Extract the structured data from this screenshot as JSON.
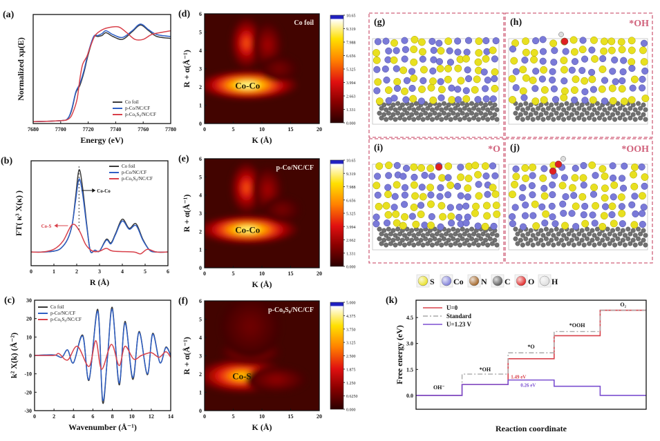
{
  "chart_data": [
    {
      "panel_label": "(a)",
      "type": "line",
      "xlabel": "Energy (eV)",
      "ylabel": "Normalized xμ(E)",
      "xlim": [
        7680,
        7780
      ],
      "ylim": [
        -0.02,
        1.12
      ],
      "xticks": [
        "7680",
        "7700",
        "7720",
        "7740",
        "7760",
        "7780"
      ],
      "yticks": [],
      "legend": "bottom-right",
      "grid": false,
      "series": [
        {
          "name": "Co foil",
          "color": "#3a3a3a",
          "x": [
            7680,
            7700,
            7705,
            7708,
            7711,
            7714,
            7717,
            7720,
            7724,
            7727,
            7730,
            7733,
            7738,
            7745,
            7752,
            7758,
            7764,
            7770,
            7780
          ],
          "y": [
            0,
            0.01,
            0.03,
            0.12,
            0.3,
            0.38,
            0.52,
            0.7,
            0.88,
            0.89,
            0.9,
            0.93,
            0.89,
            0.86,
            0.94,
            1.01,
            0.95,
            0.89,
            0.87
          ]
        },
        {
          "name": "p-Co/NC/CF",
          "color": "#2f5fc4",
          "x": [
            7680,
            7700,
            7705,
            7708,
            7711,
            7714,
            7717,
            7720,
            7724,
            7727,
            7730,
            7733,
            7738,
            7745,
            7752,
            7758,
            7764,
            7770,
            7780
          ],
          "y": [
            0,
            0.01,
            0.03,
            0.13,
            0.31,
            0.4,
            0.54,
            0.72,
            0.89,
            0.9,
            0.92,
            0.95,
            0.91,
            0.88,
            0.95,
            1.02,
            0.96,
            0.91,
            0.89
          ]
        },
        {
          "name": "p-Co₉S₈/NC/CF",
          "color": "#d8404a",
          "x": [
            7680,
            7700,
            7706,
            7709,
            7712,
            7714,
            7716,
            7719,
            7722,
            7725,
            7729,
            7734,
            7742,
            7748,
            7754,
            7760,
            7766,
            7772,
            7780
          ],
          "y": [
            0,
            0.01,
            0.03,
            0.1,
            0.24,
            0.45,
            0.6,
            0.68,
            0.8,
            0.9,
            0.95,
            0.98,
            0.99,
            0.93,
            0.86,
            0.86,
            0.91,
            0.93,
            0.95
          ]
        }
      ]
    },
    {
      "panel_label": "(b)",
      "type": "line",
      "xlabel": "R (Å)",
      "ylabel": "FT( κ³ X(κ) )",
      "xlim": [
        0,
        6
      ],
      "ylim": [
        -0.15,
        1.0
      ],
      "xticks": [
        "0",
        "1",
        "2",
        "3",
        "4",
        "5",
        "6"
      ],
      "yticks": [],
      "legend": "top-right",
      "grid": false,
      "annotations": [
        {
          "text": "Co-Co",
          "x": 2.1,
          "color": "#111"
        },
        {
          "text": "Co-S",
          "x": 1.8,
          "color": "#d8404a"
        }
      ],
      "series": [
        {
          "name": "Co foil",
          "color": "#3a3a3a",
          "x": [
            0,
            0.5,
            1,
            1.3,
            1.6,
            1.8,
            1.95,
            2.1,
            2.25,
            2.45,
            2.6,
            2.8,
            3.0,
            3.3,
            3.5,
            3.7,
            4.0,
            4.3,
            4.6,
            4.9,
            5.2,
            5.5,
            6
          ],
          "y": [
            0,
            0,
            0.01,
            0.04,
            0.14,
            0.3,
            0.6,
            0.9,
            0.72,
            0.28,
            0.01,
            0.02,
            0.01,
            0.14,
            0.1,
            0.2,
            0.36,
            0.26,
            0.31,
            0.14,
            0.02,
            0,
            0
          ]
        },
        {
          "name": "p-Co/NC/CF",
          "color": "#2f5fc4",
          "x": [
            0,
            0.5,
            1,
            1.3,
            1.6,
            1.8,
            1.95,
            2.1,
            2.25,
            2.45,
            2.6,
            2.8,
            3.0,
            3.3,
            3.5,
            3.7,
            4.0,
            4.3,
            4.6,
            4.9,
            5.2,
            5.5,
            6
          ],
          "y": [
            0,
            0,
            0.01,
            0.04,
            0.14,
            0.3,
            0.56,
            0.8,
            0.65,
            0.26,
            0.01,
            0.02,
            0.01,
            0.13,
            0.09,
            0.19,
            0.34,
            0.25,
            0.29,
            0.13,
            0.02,
            0,
            0
          ]
        },
        {
          "name": "p-Co₉S₈/NC/CF",
          "color": "#d8404a",
          "x": [
            0,
            0.5,
            1,
            1.4,
            1.8,
            2.1,
            2.4,
            2.7,
            3.0,
            3.3,
            3.6,
            4.5,
            4.8,
            5.1,
            5.5,
            6
          ],
          "y": [
            0,
            0,
            0.03,
            0.12,
            0.3,
            0.24,
            0.08,
            0.01,
            0.01,
            0.04,
            0.01,
            0,
            -0.02,
            0.03,
            0,
            0
          ]
        }
      ]
    },
    {
      "panel_label": "(c)",
      "type": "line",
      "xlabel": "Wavenumber (Å⁻¹)",
      "ylabel": "k² X(k) (Å⁻²)",
      "xlim": [
        0,
        14
      ],
      "ylim": [
        -30,
        30
      ],
      "xticks": [
        "0",
        "2",
        "4",
        "6",
        "8",
        "10",
        "12",
        "14"
      ],
      "yticks": [
        "-30",
        "-20",
        "-10",
        "0",
        "10",
        "20",
        "30"
      ],
      "legend": "top-left",
      "grid": false,
      "series": [
        {
          "name": "Co foil",
          "color": "#3a3a3a",
          "x": [
            0,
            2,
            2.8,
            3.4,
            4,
            4.95,
            5.6,
            6.5,
            7.0,
            7.5,
            8.0,
            8.7,
            9.3,
            10.1,
            10.75,
            11.6,
            12.15,
            12.9,
            13.5,
            14
          ],
          "y": [
            0,
            0.3,
            -1,
            3,
            -4,
            11,
            -13.5,
            25,
            -25.5,
            -1,
            26,
            -16,
            18.5,
            -13,
            13,
            -10.5,
            12,
            -4,
            4.5,
            0
          ]
        },
        {
          "name": "p-Co/NC/CF",
          "color": "#2f5fc4",
          "x": [
            0,
            2,
            2.8,
            3.4,
            4,
            4.95,
            5.6,
            6.5,
            7.0,
            7.5,
            8.0,
            8.7,
            9.3,
            10.1,
            10.75,
            11.6,
            12.15,
            12.9,
            13.5,
            14
          ],
          "y": [
            0,
            0.3,
            -1,
            3,
            -4,
            10.5,
            -13,
            24,
            -24,
            -1,
            25,
            -15,
            17.5,
            -12,
            12.5,
            -10,
            11.5,
            -4,
            4.2,
            0
          ]
        },
        {
          "name": "p-Co₉S₈/NC/CF",
          "color": "#d8404a",
          "x": [
            0,
            2,
            2.5,
            3.4,
            4.4,
            5.6,
            6.3,
            6.9,
            7.9,
            8.7,
            9.3,
            10.2,
            11,
            12,
            12.8,
            13.5,
            14
          ],
          "y": [
            0,
            0,
            1,
            -2.5,
            5,
            -6,
            8,
            -7.5,
            6,
            -5.5,
            5,
            -2,
            0,
            1.5,
            -1,
            2,
            -1
          ]
        }
      ]
    },
    {
      "panel_label": "(d)",
      "type": "heatmap",
      "title": "Co foil",
      "peak_label": "Co-Co",
      "xlabel": "K (Å)",
      "ylabel": "R + α(Å⁻¹)",
      "xlim": [
        0,
        20
      ],
      "ylim": [
        0,
        6
      ],
      "xticks": [
        "0",
        "5",
        "10",
        "15",
        "20"
      ],
      "yticks": [
        "0",
        "1",
        "2",
        "3",
        "4",
        "5",
        "6"
      ],
      "colorbar": [
        "10.65",
        "9.319",
        "7.988",
        "6.656",
        "5.325",
        "3.994",
        "2.663",
        "1.331",
        "0.000"
      ],
      "peaks": [
        {
          "k": 7.5,
          "R": 2.1,
          "sk": 6.5,
          "sR": 0.55,
          "level": 0.97
        },
        {
          "k": 7.3,
          "R": 4.4,
          "sk": 2.1,
          "sR": 1.0,
          "level": 0.55
        },
        {
          "k": 11,
          "R": 4.3,
          "sk": 2.0,
          "sR": 0.9,
          "level": 0.3
        },
        {
          "k": 13,
          "R": 3.0,
          "sk": 2.5,
          "sR": 0.5,
          "level": 0.18
        }
      ]
    },
    {
      "panel_label": "(e)",
      "type": "heatmap",
      "title": "p-Co/NC/CF",
      "peak_label": "Co-Co",
      "xlabel": "K (Å)",
      "ylabel": "R + α(Å⁻¹)",
      "xlim": [
        0,
        20
      ],
      "ylim": [
        0,
        6
      ],
      "xticks": [
        "0",
        "5",
        "10",
        "15",
        "20"
      ],
      "yticks": [
        "0",
        "1",
        "2",
        "3",
        "4",
        "5",
        "6"
      ],
      "colorbar": [
        "10.65",
        "9.319",
        "7.988",
        "6.656",
        "5.325",
        "3.994",
        "2.662",
        "1.331",
        "0.000"
      ],
      "peaks": [
        {
          "k": 7.5,
          "R": 2.1,
          "sk": 6.5,
          "sR": 0.55,
          "level": 0.95
        },
        {
          "k": 7.3,
          "R": 4.4,
          "sk": 2.1,
          "sR": 1.0,
          "level": 0.55
        },
        {
          "k": 11,
          "R": 4.3,
          "sk": 2.0,
          "sR": 0.9,
          "level": 0.3
        },
        {
          "k": 13.5,
          "R": 3.2,
          "sk": 2.5,
          "sR": 0.5,
          "level": 0.18
        }
      ]
    },
    {
      "panel_label": "(f)",
      "type": "heatmap",
      "title": "p-Co₉S₈/NC/CF",
      "peak_label": "Co-S",
      "xlabel": "K (Å)",
      "ylabel": "R + α(Å⁻¹)",
      "xlim": [
        0,
        20
      ],
      "ylim": [
        0,
        6
      ],
      "xticks": [
        "0",
        "5",
        "10",
        "15",
        "20"
      ],
      "yticks": [
        "0",
        "1",
        "2",
        "3",
        "4",
        "5",
        "6"
      ],
      "colorbar": [
        "5.000",
        "4.375",
        "3.750",
        "3.125",
        "2.500",
        "1.875",
        "1.250",
        "0.6250",
        "0.000"
      ],
      "peaks": [
        {
          "k": 6.5,
          "R": 1.9,
          "sk": 6,
          "sR": 0.65,
          "level": 0.78
        },
        {
          "k": 8,
          "R": 3.2,
          "sk": 4,
          "sR": 0.5,
          "level": 0.3
        },
        {
          "k": 8,
          "R": 4.6,
          "sk": 4,
          "sR": 1.2,
          "level": 0.15
        },
        {
          "k": 12.5,
          "R": 1.7,
          "sk": 4,
          "sR": 0.5,
          "level": 0.25
        }
      ]
    },
    {
      "panel_label": "(k)",
      "type": "line",
      "xlabel": "Reaction coordinate",
      "ylabel": "Free energy (eV)",
      "ylim": [
        -0.8,
        5.5
      ],
      "yticks": [
        "0.0",
        "1.5",
        "3.0",
        "4.5"
      ],
      "legend": "top-left",
      "grid": false,
      "categories": [
        "OH⁻",
        "*OH",
        "*O",
        "*OOH",
        "O₂"
      ],
      "series": [
        {
          "name": "U=0",
          "color": "#d8404a",
          "style": "solid",
          "values": [
            0,
            0.63,
            2.12,
            3.45,
            4.92
          ]
        },
        {
          "name": "Standard",
          "color": "#a8a8a8",
          "style": "dashdot",
          "values": [
            0,
            1.23,
            2.46,
            3.69,
            4.92
          ]
        },
        {
          "name": "U=1.23 V",
          "color": "#7b4fd0",
          "style": "solid",
          "values": [
            0,
            0.63,
            0.89,
            0.53,
            0
          ]
        }
      ],
      "annotations": [
        {
          "text": "1.49 eV",
          "color": "#d8404a"
        },
        {
          "text": "0.26 eV",
          "color": "#7b4fd0"
        }
      ]
    }
  ],
  "structures": {
    "panels": [
      {
        "label": "(g)",
        "adsorbate": ""
      },
      {
        "label": "(h)",
        "adsorbate": "*OH"
      },
      {
        "label": "(i)",
        "adsorbate": "*O"
      },
      {
        "label": "(j)",
        "adsorbate": "*OOH"
      }
    ],
    "adsorbate_color": "#d0607a",
    "atom_legend": [
      {
        "symbol": "S",
        "color": "#e8e020"
      },
      {
        "symbol": "Co",
        "color": "#7a7ad8"
      },
      {
        "symbol": "N",
        "color": "#a06020"
      },
      {
        "symbol": "C",
        "color": "#555555"
      },
      {
        "symbol": "O",
        "color": "#e02020"
      },
      {
        "symbol": "H",
        "color": "#dddddd"
      }
    ]
  }
}
